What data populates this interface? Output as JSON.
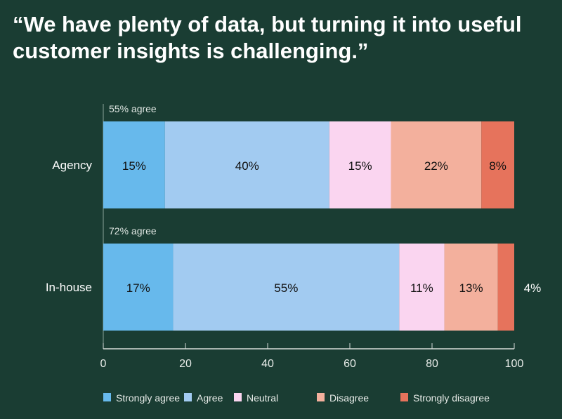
{
  "chart_data": {
    "type": "bar",
    "orientation": "horizontal",
    "stacked": true,
    "title": "“We have plenty of data, but turning it into useful customer insights is challenging.”",
    "categories": [
      "Agency",
      "In-house"
    ],
    "annotations": [
      "55% agree",
      "72% agree"
    ],
    "series": [
      {
        "name": "Strongly agree",
        "color": "#67b9ec",
        "values": [
          15,
          17
        ],
        "labels": [
          "15%",
          "17%"
        ]
      },
      {
        "name": "Agree",
        "color": "#a2cbf1",
        "values": [
          40,
          55
        ],
        "labels": [
          "40%",
          "55%"
        ]
      },
      {
        "name": "Neutral",
        "color": "#fad5f0",
        "values": [
          15,
          11
        ],
        "labels": [
          "15%",
          "11%"
        ]
      },
      {
        "name": "Disagree",
        "color": "#f3b09d",
        "values": [
          22,
          13
        ],
        "labels": [
          "22%",
          "13%"
        ]
      },
      {
        "name": "Strongly disagree",
        "color": "#e6735c",
        "values": [
          8,
          4
        ],
        "labels": [
          "8%",
          "4%"
        ]
      }
    ],
    "xlim": [
      0,
      100
    ],
    "xticks": [
      "0",
      "20",
      "40",
      "60",
      "80",
      "100"
    ],
    "grid": false,
    "legend": "bottom"
  }
}
